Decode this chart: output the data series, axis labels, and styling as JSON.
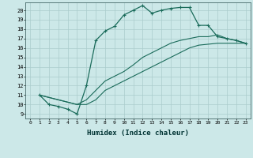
{
  "xlabel": "Humidex (Indice chaleur)",
  "bg_color": "#cce8e8",
  "grid_color": "#aacccc",
  "line_color": "#1a6b5a",
  "xlim": [
    -0.5,
    23.5
  ],
  "ylim": [
    8.5,
    20.8
  ],
  "xticks": [
    0,
    1,
    2,
    3,
    4,
    5,
    6,
    7,
    8,
    9,
    10,
    11,
    12,
    13,
    14,
    15,
    16,
    17,
    18,
    19,
    20,
    21,
    22,
    23
  ],
  "yticks": [
    9,
    10,
    11,
    12,
    13,
    14,
    15,
    16,
    17,
    18,
    19,
    20
  ],
  "s1_x": [
    1,
    2,
    3,
    4,
    5,
    6,
    7,
    8,
    9,
    10,
    11,
    12,
    13,
    14,
    15,
    16,
    17,
    18,
    19,
    20,
    21,
    22,
    23
  ],
  "s1_y": [
    11.0,
    10.0,
    9.8,
    9.5,
    9.0,
    12.0,
    16.8,
    17.8,
    18.3,
    19.5,
    20.0,
    20.5,
    19.7,
    20.0,
    20.2,
    20.3,
    20.3,
    18.4,
    18.4,
    17.2,
    17.0,
    16.8,
    16.5
  ],
  "s2_x": [
    1,
    5,
    6,
    7,
    8,
    9,
    10,
    11,
    12,
    13,
    14,
    15,
    16,
    17,
    18,
    19,
    20,
    21,
    22,
    23
  ],
  "s2_y": [
    11.0,
    10.0,
    10.5,
    11.5,
    12.5,
    13.0,
    13.5,
    14.2,
    15.0,
    15.5,
    16.0,
    16.5,
    16.8,
    17.0,
    17.2,
    17.2,
    17.4,
    17.0,
    16.8,
    16.5
  ],
  "s3_x": [
    1,
    5,
    6,
    7,
    8,
    9,
    10,
    11,
    12,
    13,
    14,
    15,
    16,
    17,
    18,
    19,
    20,
    21,
    22,
    23
  ],
  "s3_y": [
    11.0,
    10.0,
    10.0,
    10.5,
    11.5,
    12.0,
    12.5,
    13.0,
    13.5,
    14.0,
    14.5,
    15.0,
    15.5,
    16.0,
    16.3,
    16.4,
    16.5,
    16.5,
    16.5,
    16.5
  ]
}
